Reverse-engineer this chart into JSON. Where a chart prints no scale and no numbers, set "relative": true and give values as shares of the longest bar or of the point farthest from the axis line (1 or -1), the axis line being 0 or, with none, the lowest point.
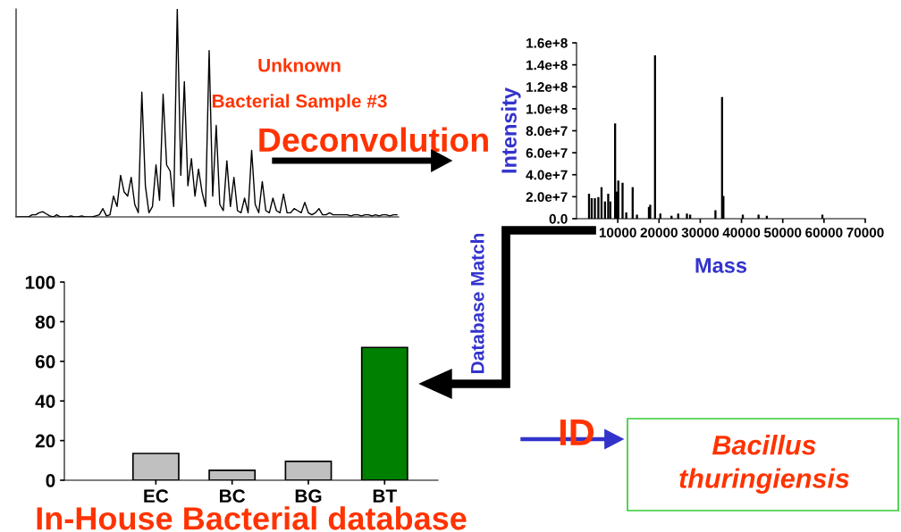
{
  "chart_data": [
    {
      "type": "line",
      "relative": true,
      "tick_labels": false,
      "color": "#000000",
      "categories": [
        null,
        null,
        null,
        null,
        null,
        null,
        null,
        null,
        null,
        null,
        null,
        null,
        null,
        null,
        null,
        null,
        null,
        null,
        null,
        null,
        null,
        null,
        null,
        null,
        null,
        null,
        null,
        null,
        null,
        null,
        null,
        null,
        null,
        null,
        null,
        null,
        null,
        null,
        null,
        null,
        null,
        null,
        null,
        null,
        null,
        null,
        null,
        null,
        null,
        null,
        null,
        null,
        null,
        null,
        null,
        null,
        null,
        null,
        null,
        null,
        null,
        null,
        null,
        null,
        null,
        null,
        null,
        null,
        null,
        null,
        null,
        null,
        null,
        null,
        null,
        null,
        null,
        null,
        null,
        null,
        null,
        null,
        null,
        null,
        null,
        null,
        null,
        null,
        null,
        null,
        null,
        null,
        null,
        null,
        null,
        null,
        null,
        null,
        null,
        null,
        null,
        null,
        null,
        null,
        null,
        null,
        null,
        null
      ],
      "values": [
        0,
        0,
        0,
        0,
        0.01,
        0.01,
        0.02,
        0.025,
        0.015,
        0.005,
        0,
        0.01,
        0,
        0,
        0,
        0.005,
        0,
        0,
        0.005,
        0,
        0,
        0,
        0.005,
        0.01,
        0.04,
        0.005,
        0.01,
        0.1,
        0.05,
        0.2,
        0.12,
        0.1,
        0.19,
        0.06,
        0.02,
        0.6,
        0.15,
        0.02,
        0.05,
        0.25,
        0.08,
        0.59,
        0.25,
        0.22,
        0.05,
        1.0,
        0.2,
        0.65,
        0.15,
        0.28,
        0.1,
        0.23,
        0.12,
        0.05,
        0.8,
        0.1,
        0.44,
        0.06,
        0.03,
        0.27,
        0.05,
        0.19,
        0.03,
        0.02,
        0.09,
        0.02,
        0.32,
        0.06,
        0.02,
        0.17,
        0.03,
        0.02,
        0.09,
        0.03,
        0.02,
        0.11,
        0.02,
        0.02,
        0.04,
        0.03,
        0.02,
        0.07,
        0.02,
        0.01,
        0.02,
        0.04,
        0.01,
        0.01,
        0.02,
        0.01,
        0.01,
        0.01,
        0.01,
        0.01,
        0.005,
        0.01,
        0.01,
        0.005,
        0.01,
        0.01,
        0.005,
        0.01,
        0.005,
        0.01,
        0.01,
        0.005,
        0.01,
        0.01
      ],
      "annotations": [
        "Unknown",
        "Bacterial Sample #3",
        "Deconvolution"
      ]
    },
    {
      "type": "bar",
      "color": "#000000",
      "xlabel": "Mass",
      "ylabel": "Intensity",
      "x": [
        3030,
        3680,
        4450,
        5290,
        6060,
        6900,
        7680,
        8190,
        9350,
        9740,
        10130,
        11160,
        12060,
        13610,
        14650,
        17550,
        17870,
        19030,
        20320,
        23030,
        24650,
        26770,
        27550,
        33680,
        35290,
        35610,
        40320,
        44130,
        46130,
        59610
      ],
      "values": [
        22000000,
        18000000,
        18000000,
        19000000,
        28000000,
        15000000,
        22000000,
        15000000,
        86000000,
        24000000,
        34000000,
        32000000,
        5000000,
        28000000,
        3000000,
        10000000,
        12000000,
        148000000,
        4000000,
        2000000,
        4000000,
        4000000,
        3000000,
        7000000,
        110000000,
        20000000,
        3000000,
        3000000,
        2000000,
        3000000
      ],
      "xlim": [
        0,
        70000
      ],
      "ylim": [
        0,
        160000000
      ],
      "xticks": [
        10000,
        20000,
        30000,
        40000,
        50000,
        60000,
        70000
      ],
      "yticks": [
        {
          "value": 0,
          "label": "0.0"
        },
        {
          "value": 20000000,
          "label": "2.0e+7"
        },
        {
          "value": 40000000,
          "label": "4.0e+7"
        },
        {
          "value": 60000000,
          "label": "6.0e+7"
        },
        {
          "value": 80000000,
          "label": "8.0e+7"
        },
        {
          "value": 100000000,
          "label": "1.0e+8"
        },
        {
          "value": 120000000,
          "label": "1.2e+8"
        },
        {
          "value": 140000000,
          "label": "1.4e+8"
        },
        {
          "value": 160000000,
          "label": "1.6e+8"
        }
      ],
      "annotations": [
        "Database Match"
      ]
    },
    {
      "type": "bar",
      "categories": [
        "EC",
        "BC",
        "BG",
        "BT"
      ],
      "values": [
        13.5,
        5,
        9.5,
        67
      ],
      "colors": [
        "#c0c0c0",
        "#c0c0c0",
        "#c0c0c0",
        "#008000"
      ],
      "ylim": [
        0,
        100
      ],
      "yticks": [
        0,
        20,
        40,
        60,
        80,
        100
      ],
      "xlabel": "In-House Bacterial database",
      "annotations": [
        "ID",
        "Bacillus thuringiensis"
      ]
    }
  ]
}
